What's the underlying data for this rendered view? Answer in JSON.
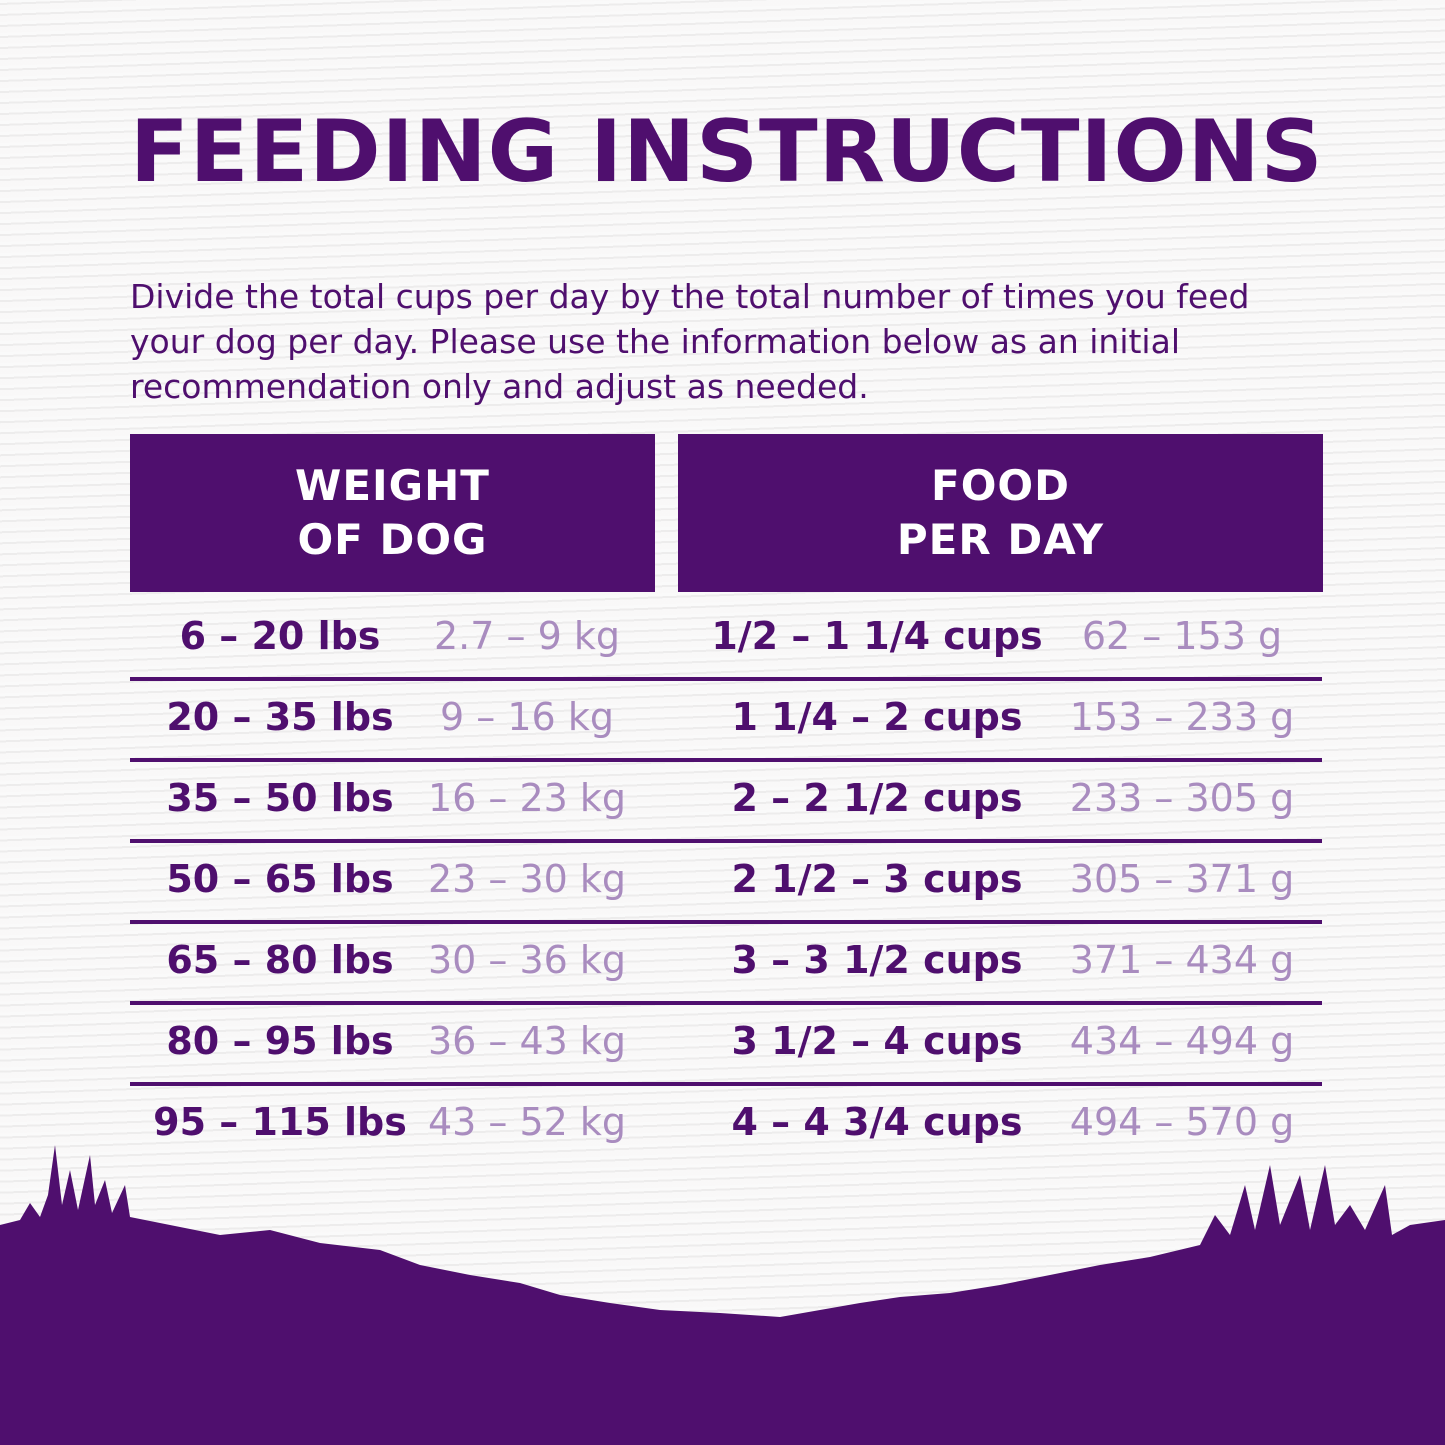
{
  "title": "FEEDING INSTRUCTIONS",
  "intro": "Divide the total cups per day by the total number of times you feed your dog per day. Please use the information below as an initial recommendation only and adjust as needed.",
  "table": {
    "headers": [
      {
        "line1": "WEIGHT",
        "line2": "OF DOG"
      },
      {
        "line1": "FOOD",
        "line2": "PER DAY"
      }
    ],
    "rows": [
      {
        "lbs": "6 – 20 lbs",
        "kg": "2.7 – 9 kg",
        "cups": "1/2 – 1 1/4 cups",
        "grams": "62 – 153 g"
      },
      {
        "lbs": "20 – 35 lbs",
        "kg": "9 – 16 kg",
        "cups": "1 1/4 – 2 cups",
        "grams": "153 – 233 g"
      },
      {
        "lbs": "35 – 50 lbs",
        "kg": "16 – 23 kg",
        "cups": "2 – 2 1/2 cups",
        "grams": "233 – 305 g"
      },
      {
        "lbs": "50 – 65 lbs",
        "kg": "23 – 30 kg",
        "cups": "2 1/2 – 3 cups",
        "grams": "305 – 371 g"
      },
      {
        "lbs": "65 – 80 lbs",
        "kg": "30 – 36 kg",
        "cups": "3 – 3 1/2 cups",
        "grams": "371 – 434 g"
      },
      {
        "lbs": "80 – 95 lbs",
        "kg": "36 – 43 kg",
        "cups": "3 1/2 – 4 cups",
        "grams": "434 – 494 g"
      },
      {
        "lbs": "95 – 115 lbs",
        "kg": "43 – 52 kg",
        "cups": "4 – 4 3/4 cups",
        "grams": "494 – 570 g"
      }
    ]
  },
  "colors": {
    "brand_purple": "#4f0f6e",
    "metric_text": "#a98cbf"
  }
}
